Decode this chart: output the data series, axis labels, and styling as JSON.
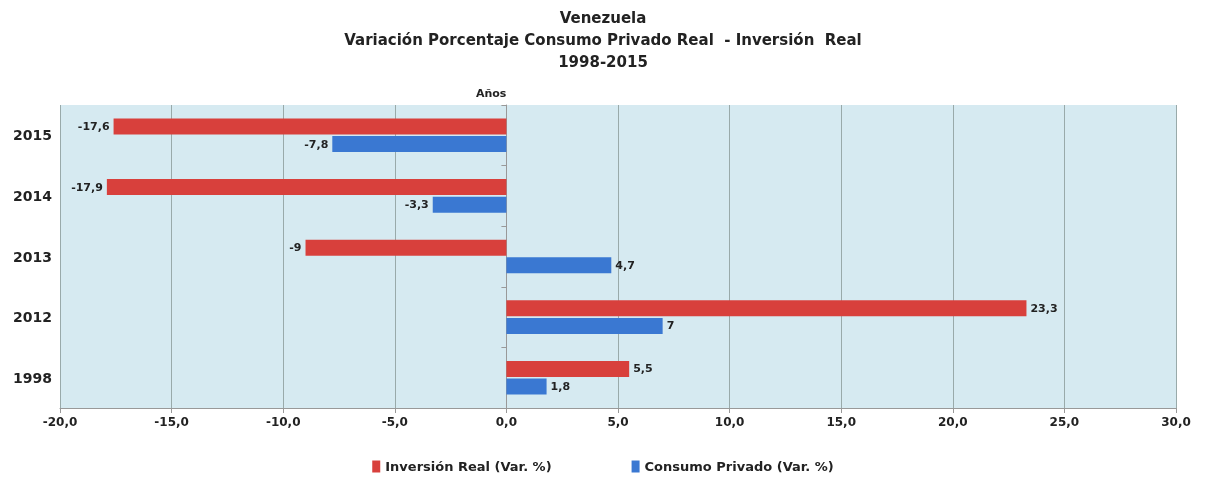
{
  "chart_data": {
    "type": "bar",
    "orientation": "horizontal",
    "title": "Venezuela\nVariación Porcentaje Consumo Privado Real  - Inversión  Real\n1998-2015",
    "ylabel": "Años",
    "categories": [
      "2015",
      "2014",
      "2013",
      "2012",
      "1998"
    ],
    "series": [
      {
        "name": "Inversión Real (Var. %)",
        "color": "#d8403c",
        "values": [
          -17.6,
          -17.9,
          -9,
          23.3,
          5.5
        ],
        "value_labels": [
          "-17,6",
          "-17,9",
          "-9",
          "23,3",
          "5,5"
        ]
      },
      {
        "name": "Consumo Privado (Var. %)",
        "color": "#3a78d2",
        "values": [
          -7.8,
          -3.3,
          4.7,
          7,
          1.8
        ],
        "value_labels": [
          "-7,8",
          "-3,3",
          "4,7",
          "7",
          "1,8"
        ]
      }
    ],
    "xlim": [
      -20,
      30
    ],
    "xticks": [
      {
        "value": -20,
        "label": "-20,0"
      },
      {
        "value": -15,
        "label": "-15,0"
      },
      {
        "value": -10,
        "label": "-10,0"
      },
      {
        "value": -5,
        "label": "-5,0"
      },
      {
        "value": 0,
        "label": "0,0"
      },
      {
        "value": 5,
        "label": "5,0"
      },
      {
        "value": 10,
        "label": "10,0"
      },
      {
        "value": 15,
        "label": "15,0"
      },
      {
        "value": 20,
        "label": "20,0"
      },
      {
        "value": 25,
        "label": "25,0"
      },
      {
        "value": 30,
        "label": "30,0"
      }
    ],
    "grid": "x",
    "legend": "bottom"
  }
}
